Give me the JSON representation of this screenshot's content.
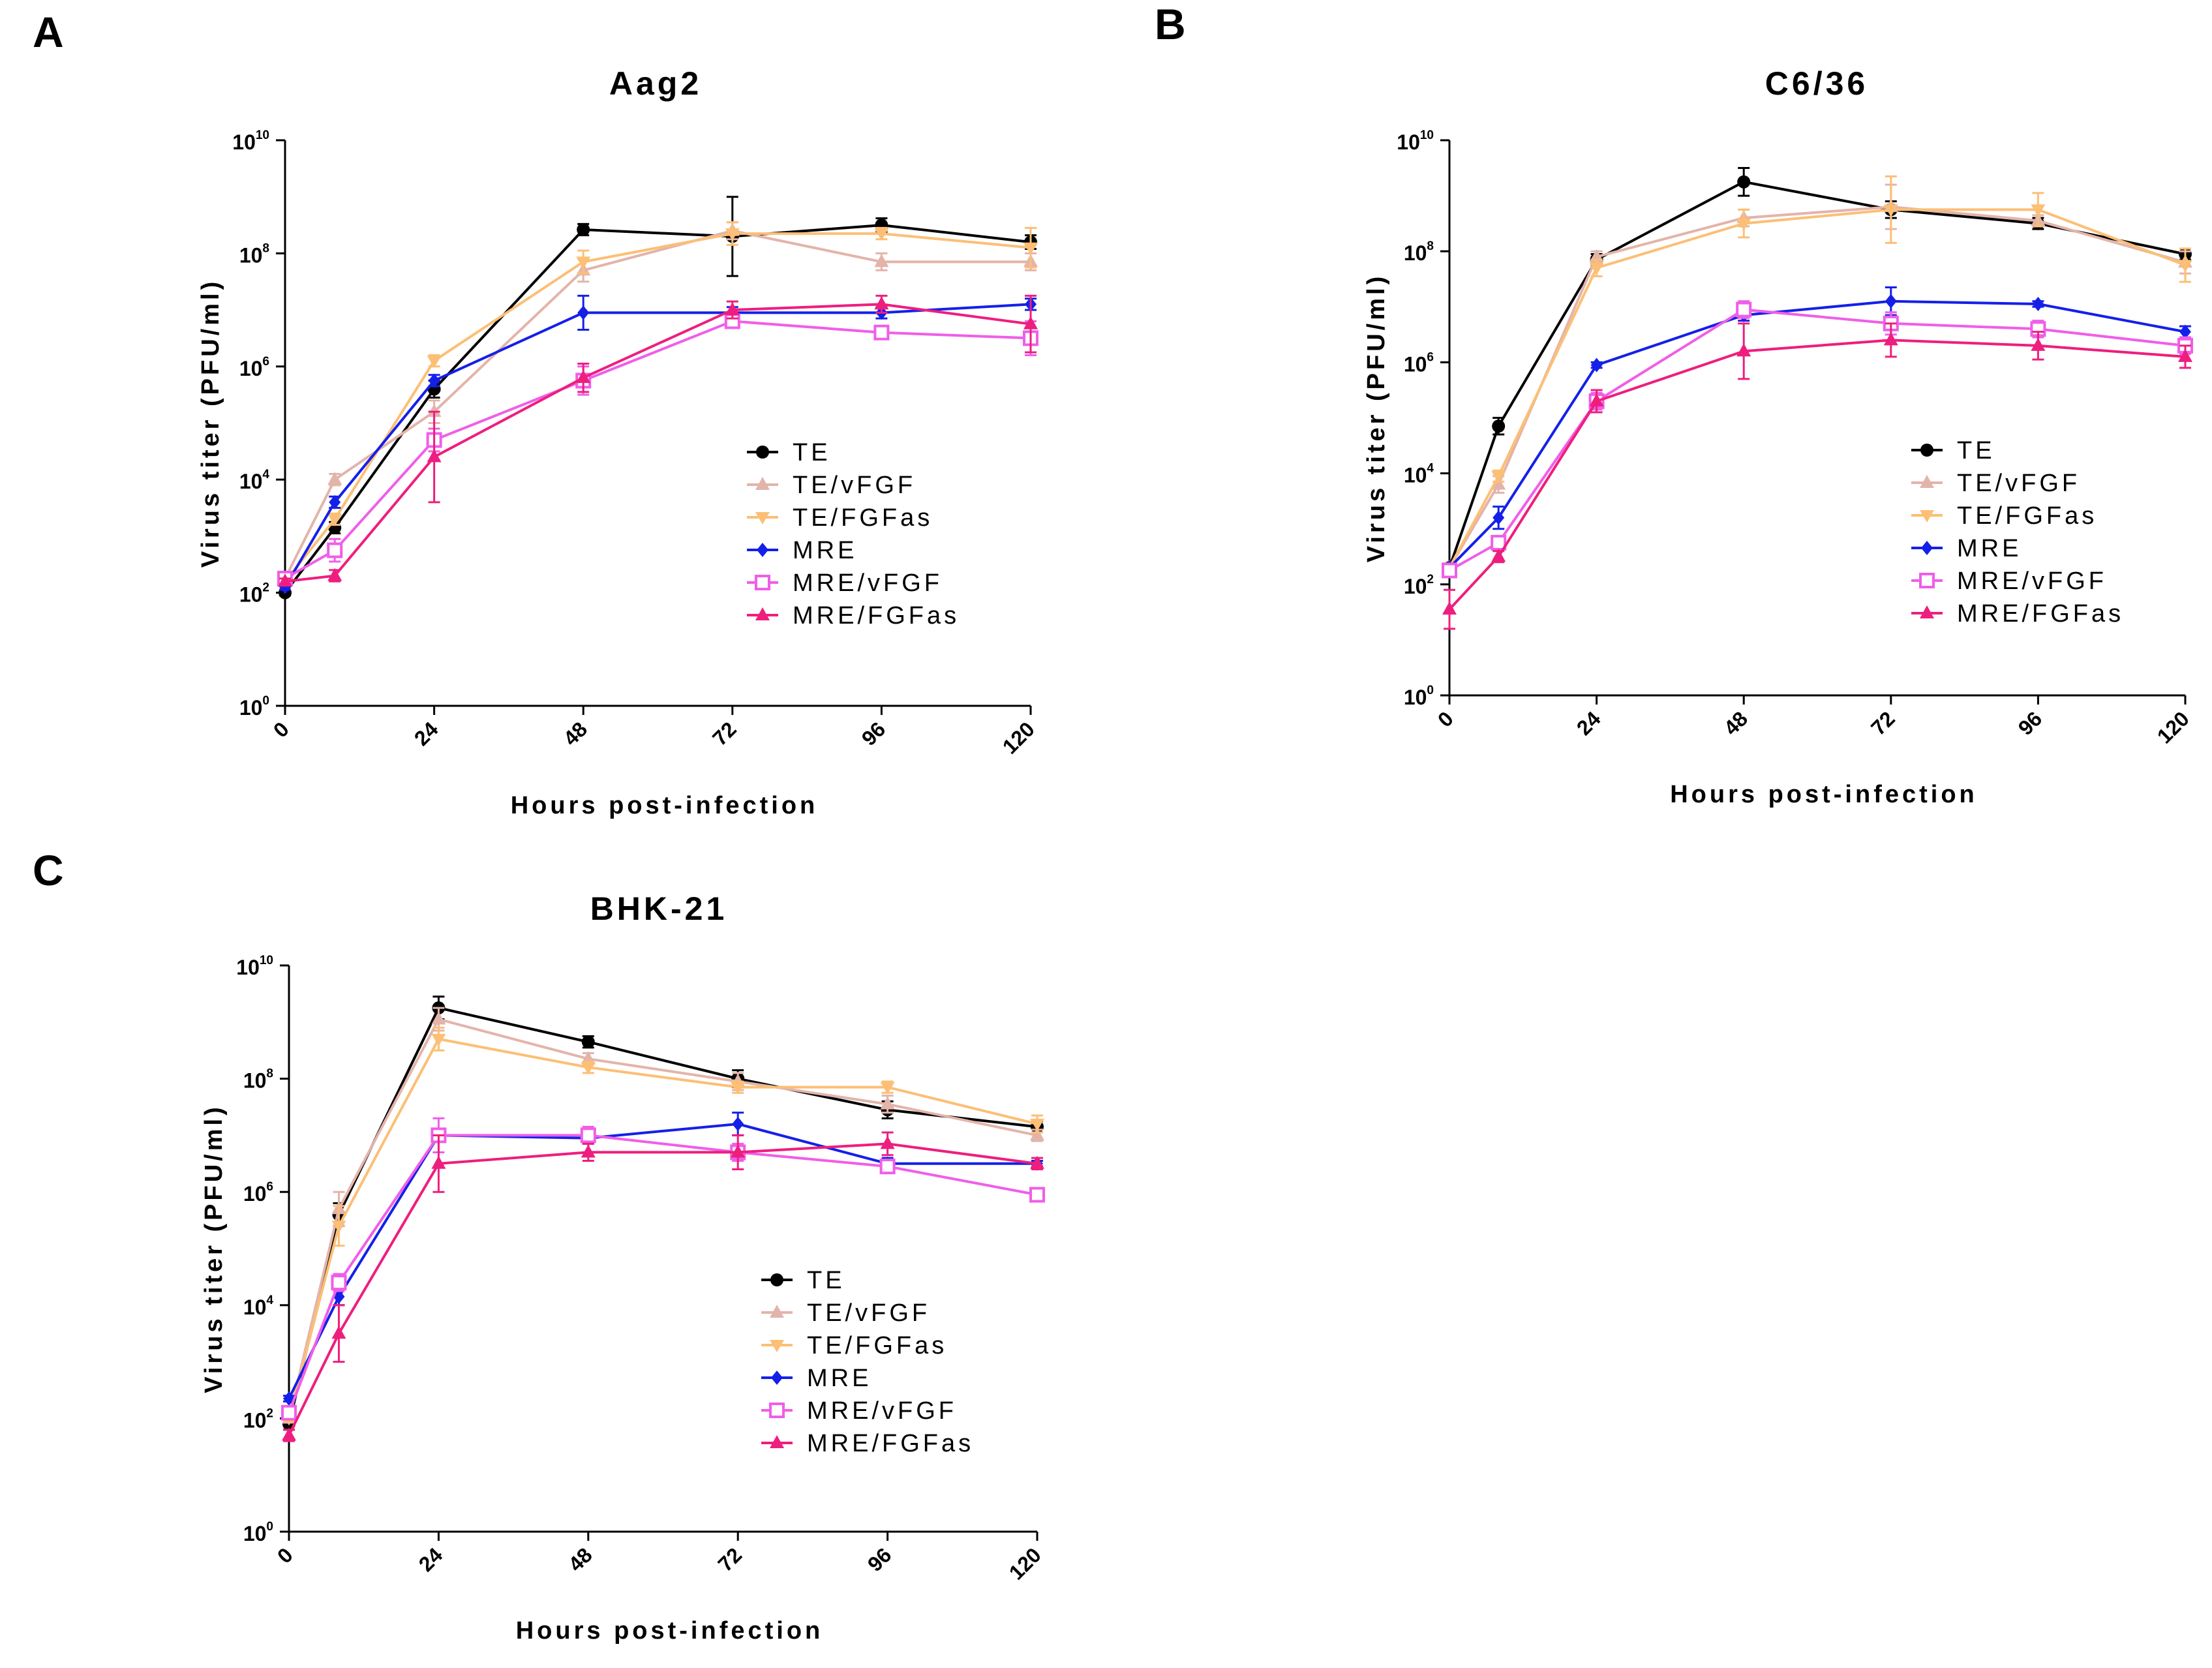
{
  "figure": {
    "panel_letters": [
      "A",
      "B",
      "C"
    ]
  },
  "chart_data": [
    {
      "type": "line",
      "panel": "A",
      "title": "Aag2",
      "xlabel": "Hours post-infection",
      "ylabel": "Virus titer (PFU/ml)",
      "y_scale": "log10",
      "x": [
        0,
        8,
        24,
        48,
        72,
        96,
        120
      ],
      "xticks": [
        0,
        24,
        48,
        72,
        96,
        120
      ],
      "xlim": [
        0,
        120
      ],
      "ylim_log10": [
        0,
        10
      ],
      "yticks": [
        {
          "base": "10",
          "exp": "0"
        },
        {
          "base": "10",
          "exp": "2"
        },
        {
          "base": "10",
          "exp": "4"
        },
        {
          "base": "10",
          "exp": "6"
        },
        {
          "base": "10",
          "exp": "8"
        },
        {
          "base": "10",
          "exp": "10"
        }
      ],
      "legend_position": "center-right",
      "series": [
        {
          "name": "TE",
          "color": "#000000",
          "marker": "circle",
          "log10_values": [
            2.0,
            3.15,
            5.6,
            8.42,
            8.3,
            8.5,
            8.2
          ],
          "log10_err": [
            0.05,
            0.1,
            0.15,
            0.1,
            0.7,
            0.12,
            0.12
          ]
        },
        {
          "name": "TE/vFGF",
          "color": "#e3b4aa",
          "marker": "triangle",
          "log10_values": [
            2.25,
            4.0,
            5.2,
            7.7,
            8.4,
            7.85,
            7.85
          ],
          "log10_err": [
            0.05,
            0.1,
            0.2,
            0.2,
            0.15,
            0.15,
            0.15
          ]
        },
        {
          "name": "TE/FGFas",
          "color": "#fcbf75",
          "marker": "triangle-down",
          "log10_values": [
            2.2,
            3.3,
            6.1,
            7.85,
            8.35,
            8.35,
            8.1
          ],
          "log10_err": [
            0.05,
            0.1,
            0.1,
            0.2,
            0.2,
            0.1,
            0.35
          ]
        },
        {
          "name": "MRE",
          "color": "#1420e8",
          "marker": "diamond",
          "log10_values": [
            2.1,
            3.6,
            5.75,
            6.95,
            6.95,
            6.95,
            7.1
          ],
          "log10_err": [
            0.05,
            0.1,
            0.1,
            0.3,
            0.1,
            0.1,
            0.1
          ]
        },
        {
          "name": "MRE/vFGF",
          "color": "#f05ee8",
          "marker": "square",
          "log10_values": [
            2.25,
            2.75,
            4.7,
            5.75,
            6.8,
            6.6,
            6.5
          ],
          "log10_err": [
            0.05,
            0.2,
            0.2,
            0.25,
            0.1,
            0.1,
            0.3
          ]
        },
        {
          "name": "MRE/FGFas",
          "color": "#ee1e7e",
          "marker": "triangle",
          "log10_values": [
            2.2,
            2.3,
            4.4,
            5.8,
            7.0,
            7.1,
            6.75
          ],
          "log10_err": [
            0.05,
            0.1,
            0.8,
            0.25,
            0.15,
            0.15,
            0.5
          ]
        }
      ]
    },
    {
      "type": "line",
      "panel": "B",
      "title": "C6/36",
      "xlabel": "Hours post-infection",
      "ylabel": "Virus titer (PFU/ml)",
      "y_scale": "log10",
      "x": [
        0,
        8,
        24,
        48,
        72,
        96,
        120
      ],
      "xticks": [
        0,
        24,
        48,
        72,
        96,
        120
      ],
      "xlim": [
        0,
        120
      ],
      "ylim_log10": [
        0,
        10
      ],
      "yticks": [
        {
          "base": "10",
          "exp": "0"
        },
        {
          "base": "10",
          "exp": "2"
        },
        {
          "base": "10",
          "exp": "4"
        },
        {
          "base": "10",
          "exp": "6"
        },
        {
          "base": "10",
          "exp": "8"
        },
        {
          "base": "10",
          "exp": "10"
        }
      ],
      "legend_position": "center-right",
      "series": [
        {
          "name": "TE",
          "color": "#000000",
          "marker": "circle",
          "log10_values": [
            2.3,
            4.85,
            7.85,
            9.25,
            8.75,
            8.5,
            7.95
          ],
          "log10_err": [
            0.05,
            0.15,
            0.1,
            0.25,
            0.15,
            0.1,
            0.1
          ]
        },
        {
          "name": "TE/vFGF",
          "color": "#e3b4aa",
          "marker": "triangle",
          "log10_values": [
            2.3,
            3.8,
            7.9,
            8.6,
            8.8,
            8.55,
            7.8
          ],
          "log10_err": [
            0.05,
            0.15,
            0.1,
            0.15,
            0.4,
            0.1,
            0.2
          ]
        },
        {
          "name": "TE/FGFas",
          "color": "#fcbf75",
          "marker": "triangle-down",
          "log10_values": [
            2.3,
            3.95,
            7.7,
            8.5,
            8.75,
            8.75,
            7.75
          ],
          "log10_err": [
            0.05,
            0.1,
            0.15,
            0.25,
            0.6,
            0.3,
            0.3
          ]
        },
        {
          "name": "MRE",
          "color": "#1420e8",
          "marker": "diamond",
          "log10_values": [
            2.3,
            3.2,
            5.95,
            6.85,
            7.1,
            7.05,
            6.55
          ],
          "log10_err": [
            0.05,
            0.2,
            0.05,
            0.1,
            0.25,
            0.05,
            0.1
          ]
        },
        {
          "name": "MRE/vFGF",
          "color": "#f05ee8",
          "marker": "square",
          "log10_values": [
            2.25,
            2.75,
            5.3,
            6.95,
            6.7,
            6.6,
            6.3
          ],
          "log10_err": [
            0.05,
            0.1,
            0.15,
            0.15,
            0.2,
            0.15,
            0.15
          ]
        },
        {
          "name": "MRE/FGFas",
          "color": "#ee1e7e",
          "marker": "triangle",
          "log10_values": [
            1.55,
            2.5,
            5.3,
            6.2,
            6.4,
            6.3,
            6.1
          ],
          "log10_err": [
            0.35,
            0.1,
            0.2,
            0.5,
            0.3,
            0.25,
            0.2
          ]
        }
      ]
    },
    {
      "type": "line",
      "panel": "C",
      "title": "BHK-21",
      "xlabel": "Hours post-infection",
      "ylabel": "Virus titer (PFU/ml)",
      "y_scale": "log10",
      "x": [
        0,
        8,
        24,
        48,
        72,
        96,
        120
      ],
      "xticks": [
        0,
        24,
        48,
        72,
        96,
        120
      ],
      "xlim": [
        0,
        120
      ],
      "ylim_log10": [
        0,
        10
      ],
      "yticks": [
        {
          "base": "10",
          "exp": "0"
        },
        {
          "base": "10",
          "exp": "2"
        },
        {
          "base": "10",
          "exp": "4"
        },
        {
          "base": "10",
          "exp": "6"
        },
        {
          "base": "10",
          "exp": "8"
        },
        {
          "base": "10",
          "exp": "10"
        }
      ],
      "legend_position": "center-right",
      "series": [
        {
          "name": "TE",
          "color": "#000000",
          "marker": "circle",
          "log10_values": [
            1.9,
            5.6,
            9.25,
            8.65,
            8.0,
            7.45,
            7.15
          ],
          "log10_err": [
            0.1,
            0.2,
            0.2,
            0.1,
            0.15,
            0.15,
            0.1
          ]
        },
        {
          "name": "TE/vFGF",
          "color": "#e3b4aa",
          "marker": "triangle",
          "log10_values": [
            2.0,
            5.7,
            9.05,
            8.35,
            7.95,
            7.55,
            7.0
          ],
          "log10_err": [
            0.05,
            0.3,
            0.2,
            0.1,
            0.15,
            0.15,
            0.1
          ]
        },
        {
          "name": "TE/FGFas",
          "color": "#fcbf75",
          "marker": "triangle-down",
          "log10_values": [
            2.0,
            5.4,
            8.7,
            8.2,
            7.85,
            7.85,
            7.2
          ],
          "log10_err": [
            0.05,
            0.35,
            0.2,
            0.1,
            0.1,
            0.1,
            0.15
          ]
        },
        {
          "name": "MRE",
          "color": "#1420e8",
          "marker": "diamond",
          "log10_values": [
            2.35,
            4.15,
            7.0,
            6.95,
            7.2,
            6.5,
            6.5
          ],
          "log10_err": [
            0.05,
            0.15,
            0.1,
            0.1,
            0.2,
            0.1,
            0.05
          ]
        },
        {
          "name": "MRE/vFGF",
          "color": "#f05ee8",
          "marker": "square",
          "log10_values": [
            2.1,
            4.4,
            7.0,
            7.0,
            6.7,
            6.45,
            5.95
          ],
          "log10_err": [
            0.1,
            0.15,
            0.3,
            0.15,
            0.15,
            0.1,
            0.05
          ]
        },
        {
          "name": "MRE/FGFas",
          "color": "#ee1e7e",
          "marker": "triangle",
          "log10_values": [
            1.7,
            3.5,
            6.5,
            6.7,
            6.7,
            6.85,
            6.5
          ],
          "log10_err": [
            0.1,
            0.5,
            0.5,
            0.15,
            0.3,
            0.2,
            0.1
          ]
        }
      ]
    }
  ]
}
